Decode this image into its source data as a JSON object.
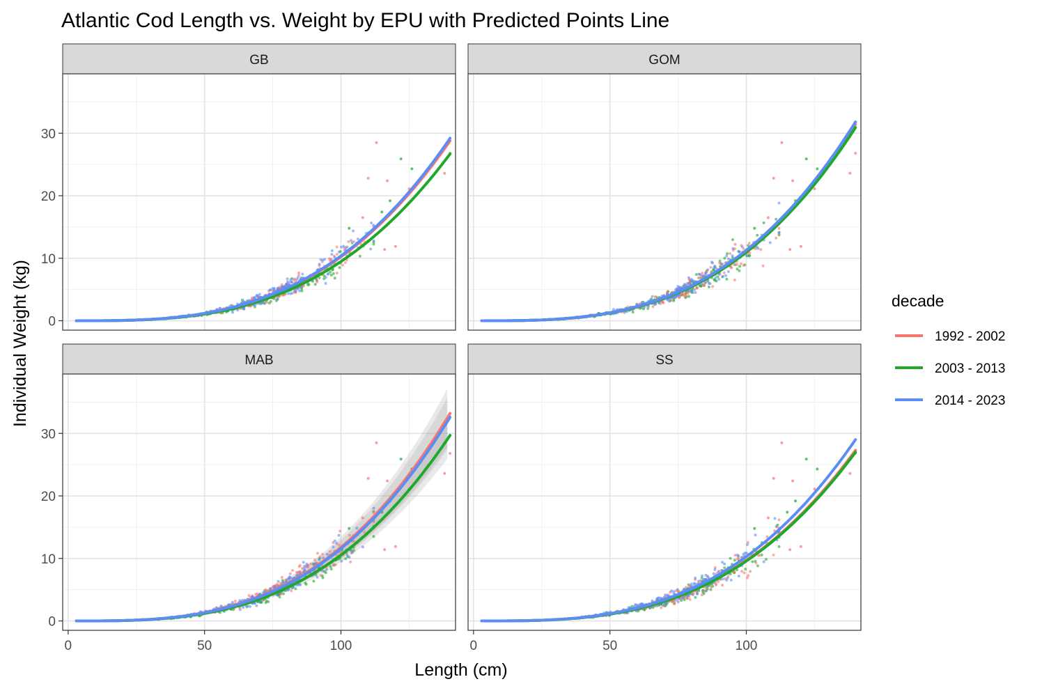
{
  "chart_data": {
    "type": "scatter",
    "title": "Atlantic Cod Length vs. Weight by EPU with Predicted Points Line",
    "xlabel": "Length (cm)",
    "ylabel": "Individual Weight (kg)",
    "xlim": [
      -2,
      142
    ],
    "ylim": [
      -1.5,
      39.5
    ],
    "x_ticks": [
      0,
      50,
      100
    ],
    "x_tick_labels": [
      "0",
      "50",
      "100"
    ],
    "y_ticks": [
      0,
      10,
      20,
      30
    ],
    "y_tick_labels": [
      "0",
      "10",
      "20",
      "30"
    ],
    "grid": true,
    "facets": [
      "GB",
      "GOM",
      "MAB",
      "SS"
    ],
    "legend": {
      "title": "decade",
      "position": "right",
      "entries": [
        "1992 - 2002",
        "2003 - 2013",
        "2014 - 2023"
      ]
    },
    "colors": {
      "1992 - 2002": "#F8766D",
      "2003 - 2013": "#1FA82A",
      "2014 - 2023": "#5B8DF5"
    },
    "fitted_lines": {
      "GB": [
        {
          "series": "1992 - 2002",
          "x": [
            3,
            140
          ],
          "y": [
            0,
            28.8
          ]
        },
        {
          "series": "2003 - 2013",
          "x": [
            3,
            140
          ],
          "y": [
            0,
            26.7
          ]
        },
        {
          "series": "2014 - 2023",
          "x": [
            3,
            140
          ],
          "y": [
            0,
            29.2
          ]
        }
      ],
      "GOM": [
        {
          "series": "1992 - 2002",
          "x": [
            3,
            140
          ],
          "y": [
            0,
            31.4
          ]
        },
        {
          "series": "2003 - 2013",
          "x": [
            3,
            140
          ],
          "y": [
            0,
            30.9
          ]
        },
        {
          "series": "2014 - 2023",
          "x": [
            3,
            140
          ],
          "y": [
            0,
            31.8
          ]
        }
      ],
      "MAB": [
        {
          "series": "1992 - 2002",
          "x": [
            3,
            140
          ],
          "y": [
            0,
            33.2
          ]
        },
        {
          "series": "2003 - 2013",
          "x": [
            3,
            140
          ],
          "y": [
            0,
            29.7
          ]
        },
        {
          "series": "2014 - 2023",
          "x": [
            3,
            140
          ],
          "y": [
            0,
            32.6
          ]
        }
      ],
      "SS": [
        {
          "series": "1992 - 2002",
          "x": [
            3,
            140
          ],
          "y": [
            0,
            27.3
          ]
        },
        {
          "series": "2003 - 2013",
          "x": [
            3,
            140
          ],
          "y": [
            0,
            27.0
          ]
        },
        {
          "series": "2014 - 2023",
          "x": [
            3,
            140
          ],
          "y": [
            0,
            29.0
          ]
        }
      ]
    },
    "confidence_band": {
      "facet": "MAB",
      "upper_at_x140": [
        38.0,
        33.2,
        36.5
      ],
      "lower_at_x140": [
        28.5,
        26.5,
        28.0
      ]
    },
    "outliers": [
      {
        "series": "1992 - 2002",
        "x": 113,
        "y": 28.5
      },
      {
        "series": "1992 - 2002",
        "x": 110,
        "y": 22.8
      },
      {
        "series": "1992 - 2002",
        "x": 117,
        "y": 22.4
      },
      {
        "series": "2003 - 2013",
        "x": 122,
        "y": 25.9
      },
      {
        "series": "1992 - 2002",
        "x": 125,
        "y": 21.1
      },
      {
        "series": "2003 - 2013",
        "x": 126,
        "y": 24.3
      },
      {
        "series": "1992 - 2002",
        "x": 138,
        "y": 23.6
      },
      {
        "series": "1992 - 2002",
        "x": 140,
        "y": 26.8
      },
      {
        "series": "1992 - 2002",
        "x": 120,
        "y": 11.9
      },
      {
        "series": "1992 - 2002",
        "x": 116,
        "y": 11.4
      },
      {
        "series": "1992 - 2002",
        "x": 108,
        "y": 16.5
      },
      {
        "series": "2003 - 2013",
        "x": 103,
        "y": 14.8
      },
      {
        "series": "2003 - 2013",
        "x": 115,
        "y": 17.4
      },
      {
        "series": "2003 - 2013",
        "x": 118,
        "y": 19.2
      }
    ]
  }
}
